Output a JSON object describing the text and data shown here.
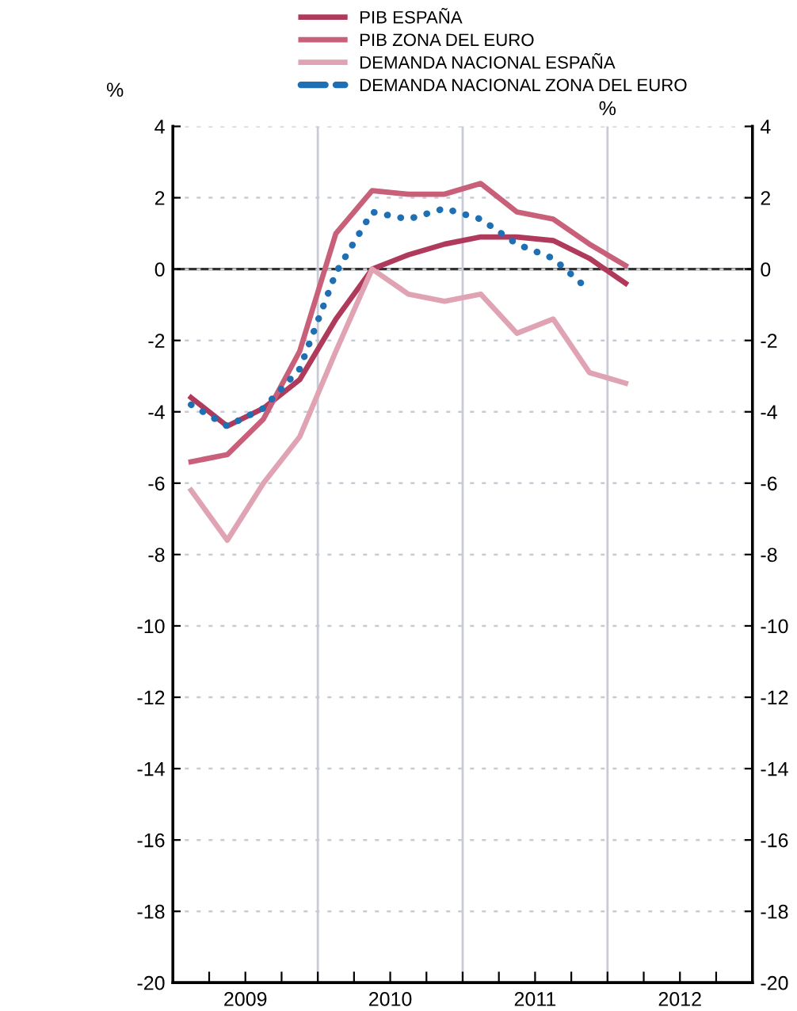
{
  "chart_data": {
    "type": "line",
    "ylabel": "%",
    "y2label": "%",
    "x": [
      2009.125,
      2009.375,
      2009.625,
      2009.875,
      2010.125,
      2010.375,
      2010.625,
      2010.875,
      2011.125,
      2011.375,
      2011.625,
      2011.875,
      2012.125
    ],
    "series": [
      {
        "name": "PIB ESPAÑA",
        "color": "#b03a5b",
        "values": [
          -3.6,
          -4.4,
          -3.9,
          -3.1,
          -1.4,
          0.0,
          0.4,
          0.7,
          0.9,
          0.9,
          0.8,
          0.3,
          -0.4
        ]
      },
      {
        "name": "PIB ZONA DEL EURO",
        "color": "#c8607a",
        "values": [
          -5.4,
          -5.2,
          -4.2,
          -2.3,
          1.0,
          2.2,
          2.1,
          2.1,
          2.4,
          1.6,
          1.4,
          0.7,
          0.1
        ]
      },
      {
        "name": "DEMANDA NACIONAL ESPAÑA",
        "color": "#e0a3b3",
        "values": [
          -6.2,
          -7.6,
          -6.0,
          -4.7,
          -2.3,
          0.0,
          -0.7,
          -0.9,
          -0.7,
          -1.8,
          -1.4,
          -2.9,
          -3.2
        ]
      },
      {
        "name": "DEMANDA NACIONAL ZONA DEL EURO",
        "color": "#1f6fb5",
        "line_style": "dotted",
        "values": [
          -3.8,
          -4.4,
          -3.9,
          -2.8,
          -0.1,
          1.6,
          1.4,
          1.7,
          1.4,
          0.7,
          0.3,
          -0.6,
          null
        ]
      }
    ],
    "xlim": [
      2009,
      2013
    ],
    "xticks": [
      {
        "value": 2009,
        "label": null
      },
      {
        "value": 2009.25,
        "label": null
      },
      {
        "value": 2009.5,
        "label": "2009"
      },
      {
        "value": 2009.75,
        "label": null
      },
      {
        "value": 2010,
        "label": null
      },
      {
        "value": 2010.25,
        "label": null
      },
      {
        "value": 2010.5,
        "label": "2010"
      },
      {
        "value": 2010.75,
        "label": null
      },
      {
        "value": 2011,
        "label": null
      },
      {
        "value": 2011.25,
        "label": null
      },
      {
        "value": 2011.5,
        "label": "2011"
      },
      {
        "value": 2011.75,
        "label": null
      },
      {
        "value": 2012,
        "label": null
      },
      {
        "value": 2012.25,
        "label": null
      },
      {
        "value": 2012.5,
        "label": "2012"
      },
      {
        "value": 2012.75,
        "label": null
      },
      {
        "value": 2013,
        "label": null
      }
    ],
    "ylim": [
      -20,
      4
    ],
    "yticks": [
      -20,
      -18,
      -16,
      -14,
      -12,
      -10,
      -8,
      -6,
      -4,
      -2,
      0,
      2,
      4
    ],
    "y2lim": [
      -20,
      4
    ],
    "y2ticks": [
      -20,
      -18,
      -16,
      -14,
      -12,
      -10,
      -8,
      -6,
      -4,
      -2,
      0,
      2,
      4
    ],
    "ref_lines": [
      {
        "axis": "y",
        "value": 0,
        "color": "#333333"
      },
      {
        "axis": "x",
        "value": 2010,
        "color": "#c8cbd6"
      },
      {
        "axis": "x",
        "value": 2011,
        "color": "#c8cbd6"
      },
      {
        "axis": "x",
        "value": 2012,
        "color": "#c8cbd6"
      }
    ],
    "grid": "y",
    "legend": "top",
    "marker": "none",
    "line_style": "solid"
  }
}
